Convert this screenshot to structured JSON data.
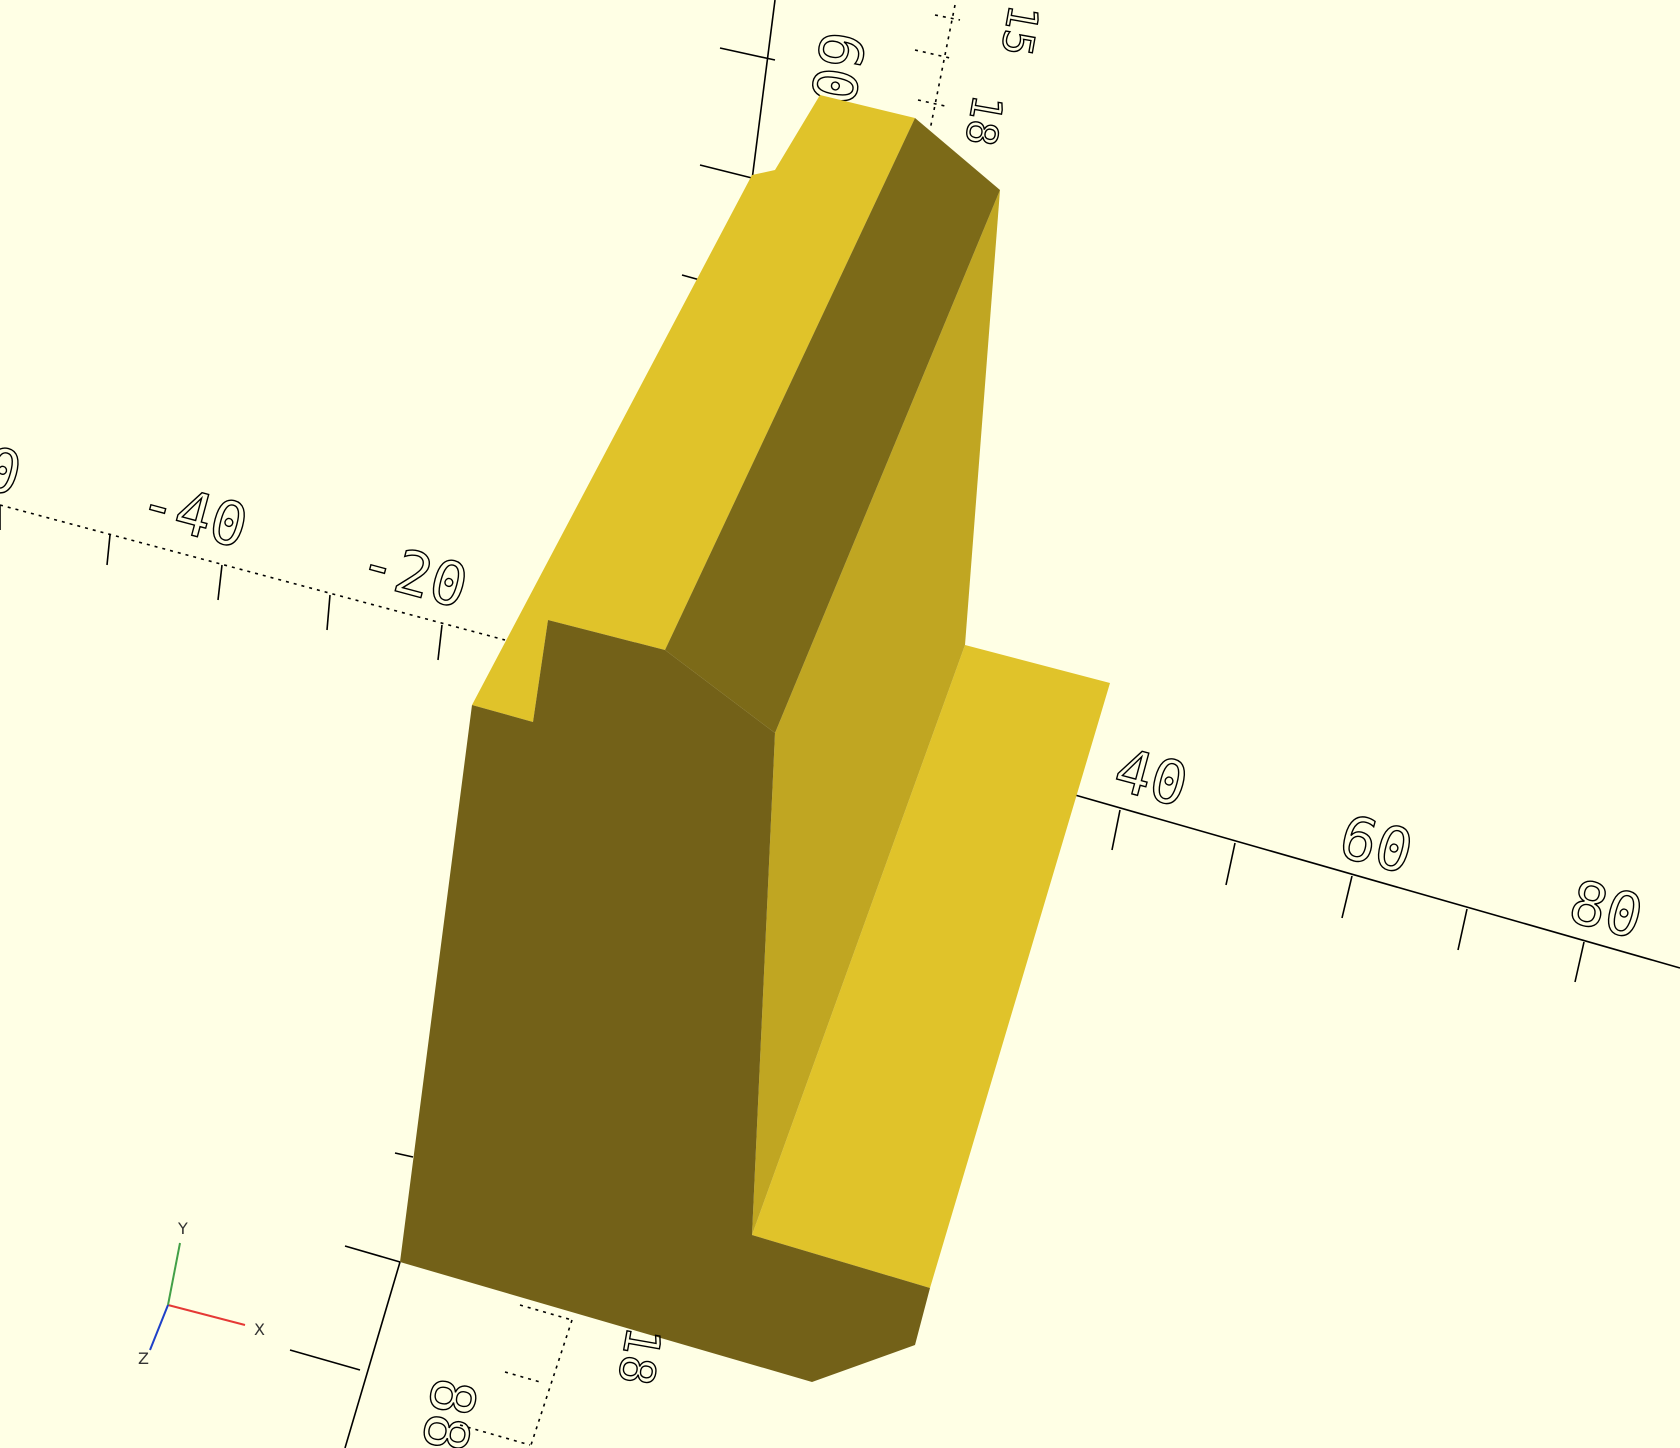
{
  "viewport": {
    "background": "#FFFFE5",
    "model_colors": {
      "top": "#E0C32A",
      "front": "#736118",
      "shade_dark": "#7C6A1A",
      "side": "#C0A622"
    }
  },
  "axes": {
    "x_ticks": [
      "-40",
      "-20",
      "40",
      "60",
      "80"
    ],
    "y_ticks": [
      "60"
    ],
    "z_ticks": [
      "15",
      "18",
      "18",
      "88"
    ],
    "partial_tick": "0"
  },
  "gizmo": {
    "x_label": "X",
    "y_label": "Y",
    "z_label": "Z",
    "x_color": "#E53935",
    "y_color": "#43A047",
    "z_color": "#1E40C8"
  }
}
